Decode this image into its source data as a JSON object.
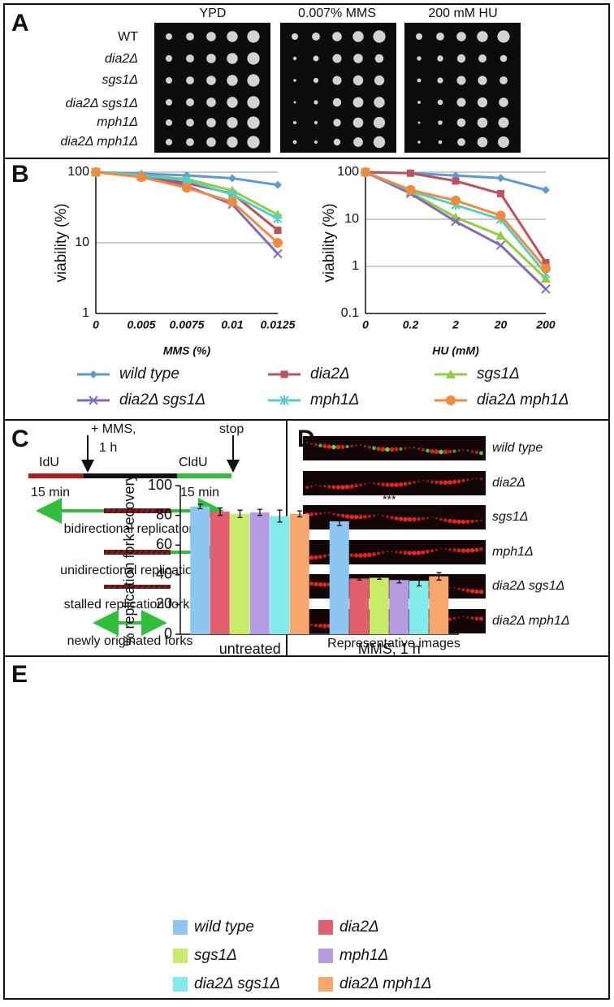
{
  "panel_labels": [
    "A",
    "B",
    "C",
    "D",
    "E"
  ],
  "panel_a": {
    "conditions": [
      "YPD",
      "0.007% MMS",
      "200 mM HU"
    ],
    "strains": [
      "WT",
      "dia2Δ",
      "sgs1Δ",
      "dia2Δ sgs1Δ",
      "mph1Δ",
      "dia2Δ mph1Δ"
    ]
  },
  "chart_data": [
    {
      "type": "line",
      "ylabel": "viability (%)",
      "xlabel": "MMS (%)",
      "categories": [
        "0",
        "0.005",
        "0.0075",
        "0.01",
        "0.0125"
      ],
      "ylim": [
        1,
        100
      ],
      "yticks": [
        1,
        10,
        100
      ],
      "log_scale": true,
      "grid": true,
      "series": [
        {
          "name": "wild type",
          "color": "#5b9ad8",
          "marker": "diamond",
          "values": [
            100,
            95,
            90,
            82,
            66
          ]
        },
        {
          "name": "dia2Δ",
          "color": "#c0505a",
          "marker": "square",
          "values": [
            100,
            88,
            70,
            50,
            15
          ]
        },
        {
          "name": "sgs1Δ",
          "color": "#8fcf3a",
          "marker": "triangle",
          "values": [
            100,
            90,
            80,
            55,
            25
          ]
        },
        {
          "name": "dia2Δ sgs1Δ",
          "color": "#8468c0",
          "marker": "x",
          "values": [
            100,
            87,
            64,
            35,
            7
          ]
        },
        {
          "name": "mph1Δ",
          "color": "#52cfcb",
          "marker": "asterisk",
          "values": [
            100,
            90,
            77,
            48,
            22
          ]
        },
        {
          "name": "dia2Δ mph1Δ",
          "color": "#f28a3c",
          "marker": "circle",
          "values": [
            100,
            85,
            60,
            38,
            10
          ]
        }
      ]
    },
    {
      "type": "line",
      "ylabel": "viability (%)",
      "xlabel": "HU (mM)",
      "categories": [
        "0",
        "0.2",
        "2",
        "20",
        "200"
      ],
      "ylim": [
        0.1,
        100
      ],
      "yticks": [
        0.1,
        1,
        10,
        100
      ],
      "log_scale": true,
      "grid": true,
      "series": [
        {
          "name": "wild type",
          "color": "#5b9ad8",
          "marker": "diamond",
          "values": [
            100,
            95,
            85,
            75,
            42
          ]
        },
        {
          "name": "dia2Δ",
          "color": "#c0505a",
          "marker": "square",
          "values": [
            100,
            95,
            65,
            35,
            1.2
          ]
        },
        {
          "name": "sgs1Δ",
          "color": "#8fcf3a",
          "marker": "triangle",
          "values": [
            100,
            38,
            11,
            4.5,
            0.55
          ]
        },
        {
          "name": "dia2Δ sgs1Δ",
          "color": "#8468c0",
          "marker": "x",
          "values": [
            100,
            35,
            9,
            2.8,
            0.33
          ]
        },
        {
          "name": "mph1Δ",
          "color": "#52cfcb",
          "marker": "asterisk",
          "values": [
            100,
            40,
            20,
            10,
            0.7
          ]
        },
        {
          "name": "dia2Δ mph1Δ",
          "color": "#f28a3c",
          "marker": "circle",
          "values": [
            100,
            42,
            25,
            12,
            0.9
          ]
        }
      ]
    },
    {
      "type": "bar",
      "ylabel": "% replication fork recovery",
      "categories": [
        "untreated",
        "MMS, 1 h"
      ],
      "ylim": [
        0,
        100
      ],
      "yticks": [
        0,
        20,
        40,
        60,
        80,
        100
      ],
      "grid": false,
      "annotation": "***",
      "series": [
        {
          "name": "wild type",
          "color": "#8ec6f2",
          "values": [
            86,
            76
          ],
          "errors": [
            1.5,
            3
          ]
        },
        {
          "name": "dia2Δ",
          "color": "#e2606e",
          "values": [
            82.5,
            37.5
          ],
          "errors": [
            2.5,
            1
          ]
        },
        {
          "name": "sgs1Δ",
          "color": "#c8ec68",
          "values": [
            81,
            38
          ],
          "errors": [
            2.5,
            1
          ]
        },
        {
          "name": "mph1Δ",
          "color": "#b59be2",
          "values": [
            82,
            36.5
          ],
          "errors": [
            2,
            2
          ]
        },
        {
          "name": "dia2Δ sgs1Δ",
          "color": "#82ecec",
          "values": [
            79.5,
            36
          ],
          "errors": [
            4,
            3.5
          ]
        },
        {
          "name": "dia2Δ mph1Δ",
          "color": "#f7a66c",
          "values": [
            81,
            39
          ],
          "errors": [
            2,
            2.5
          ]
        }
      ]
    }
  ],
  "panel_c": {
    "idu": "IdU",
    "mms": "+ MMS,",
    "mms_time": "1 h",
    "cldu": "CldU",
    "stop": "stop",
    "idu_time": "15 min",
    "cldu_time": "15 min",
    "bidirectional": "bidirectional replication",
    "unidirectional": "unidirectional replication",
    "stalled": "stalled replication forks",
    "new_origin": "newly originated forks"
  },
  "panel_d": {
    "strains": [
      "wild type",
      "dia2Δ",
      "sgs1Δ",
      "mph1Δ",
      "dia2Δ sgs1Δ",
      "dia2Δ mph1Δ"
    ],
    "caption": "Representative images"
  }
}
